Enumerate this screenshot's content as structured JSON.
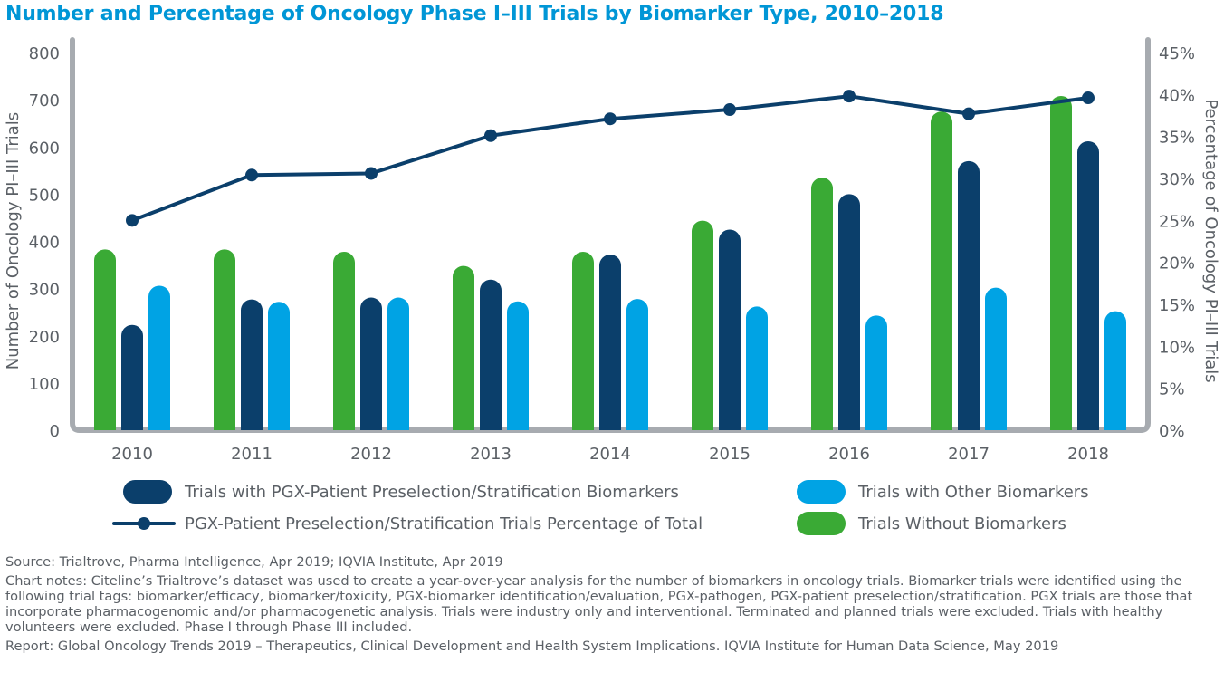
{
  "chart_data": {
    "type": "bar",
    "title": "Number and Percentage of Oncology Phase I–III Trials by Biomarker Type, 2010–2018",
    "categories": [
      "2010",
      "2011",
      "2012",
      "2013",
      "2014",
      "2015",
      "2016",
      "2017",
      "2018"
    ],
    "ylabel": "Number of Oncology PI–III Trials",
    "y2label": "Percentage of Oncology PI–III Trials",
    "ylim": [
      0,
      800
    ],
    "y2lim": [
      0,
      45
    ],
    "yticks": [
      "0",
      "100",
      "200",
      "300",
      "400",
      "500",
      "600",
      "700",
      "800"
    ],
    "y2ticks": [
      "0%",
      "5%",
      "10%",
      "15%",
      "20%",
      "25%",
      "30%",
      "35%",
      "40%",
      "45%"
    ],
    "series": [
      {
        "name": "Trials Without Biomarkers",
        "type": "bar",
        "color": "#3aaa35",
        "values": [
          383,
          383,
          378,
          348,
          378,
          444,
          535,
          675,
          708
        ]
      },
      {
        "name": "Trials with PGX-Patient Preselection/Stratification Biomarkers",
        "type": "bar",
        "color": "#0b3f6b",
        "values": [
          223,
          277,
          281,
          319,
          372,
          425,
          500,
          570,
          612
        ]
      },
      {
        "name": "Trials with Other Biomarkers",
        "type": "bar",
        "color": "#00a3e4",
        "values": [
          306,
          272,
          281,
          273,
          278,
          262,
          243,
          302,
          252
        ]
      },
      {
        "name": "PGX-Patient Preselection/Stratification Trials Percentage of Total",
        "type": "line",
        "axis": "right",
        "color": "#0b3f6b",
        "values": [
          25.0,
          30.4,
          30.6,
          35.1,
          37.1,
          38.2,
          39.8,
          37.7,
          39.6
        ]
      }
    ],
    "legend": [
      {
        "label": "Trials with PGX-Patient Preselection/Stratification Biomarkers",
        "kind": "bar",
        "color": "#0b3f6b"
      },
      {
        "label": "Trials with Other Biomarkers",
        "kind": "bar",
        "color": "#00a3e4"
      },
      {
        "label": "PGX-Patient Preselection/Stratification Trials Percentage of Total",
        "kind": "line",
        "color": "#0b3f6b"
      },
      {
        "label": "Trials Without Biomarkers",
        "kind": "bar",
        "color": "#3aaa35"
      }
    ],
    "grid": false
  },
  "notes": {
    "source": "Source: Trialtrove, Pharma Intelligence, Apr 2019; IQVIA Institute, Apr 2019",
    "chart_notes": "Chart notes: Citeline’s Trialtrove’s dataset was used to create a year-over-year analysis for the number of biomarkers in oncology trials. Biomarker trials were identified using the following trial tags: biomarker/efficacy, biomarker/toxicity, PGX-biomarker identification/evaluation, PGX-pathogen, PGX-patient preselec­tion/stratification. PGX trials are those that incorporate pharmacogenomic and/or pharmacogenetic analysis. Trials were industry only and interventional. Terminated and planned trials were excluded. Trials with healthy volunteers were excluded. Phase I through Phase III included.",
    "report": "Report: Global Oncology Trends 2019 – Therapeutics, Clinical Development and Health System Implications. IQVIA Institute for Human Data Science, May 2019"
  }
}
